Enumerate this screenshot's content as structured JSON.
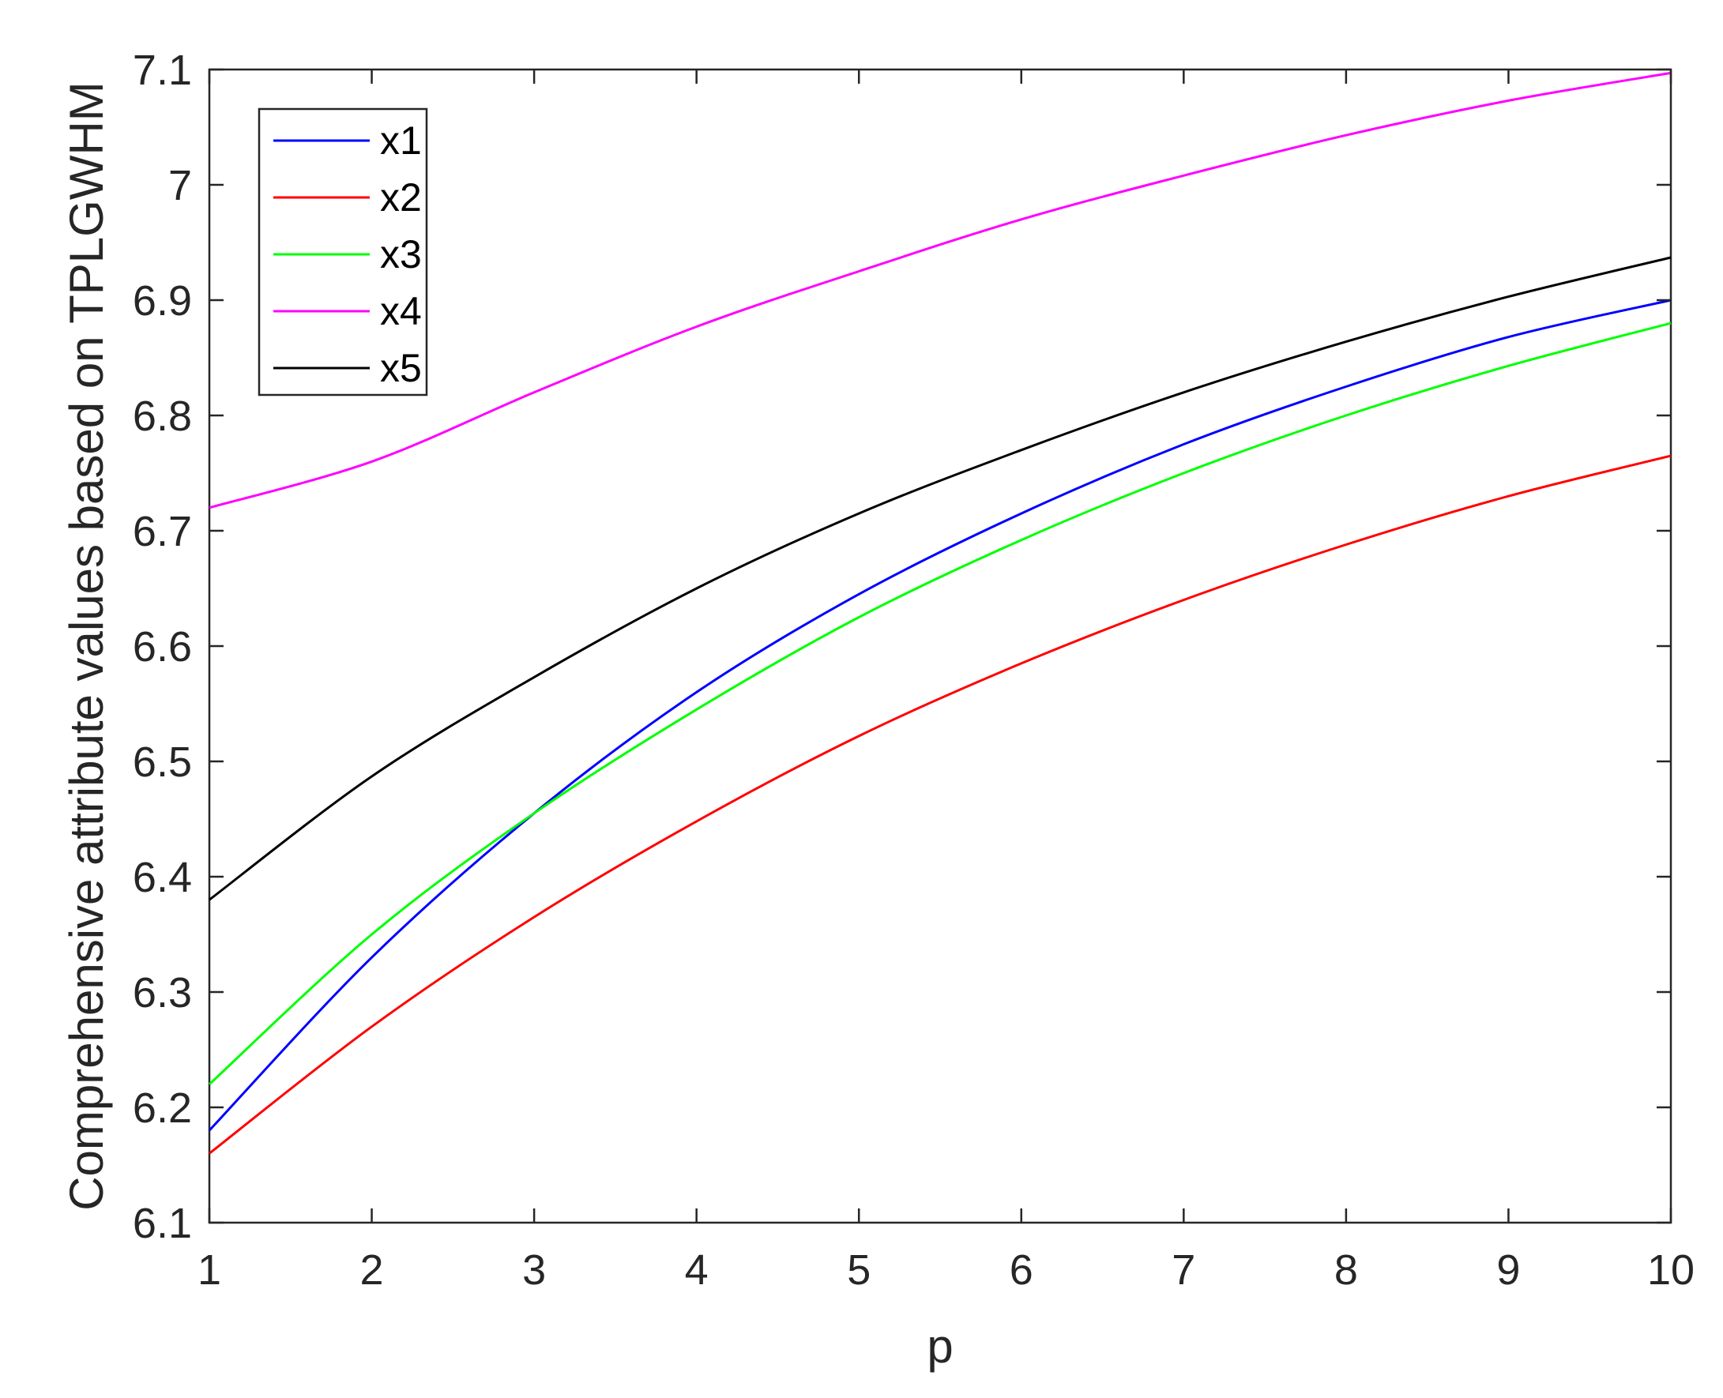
{
  "chart_data": {
    "type": "line",
    "title": "",
    "xlabel": "p",
    "ylabel": "Comprehensive attribute values based on TPLGWHM",
    "xlim": [
      1,
      10
    ],
    "ylim": [
      6.1,
      7.1
    ],
    "x": [
      1,
      2,
      3,
      4,
      5,
      6,
      7,
      8,
      9,
      10
    ],
    "xticks": [
      "1",
      "2",
      "3",
      "4",
      "5",
      "6",
      "7",
      "8",
      "9",
      "10"
    ],
    "yticks": [
      "6.1",
      "6.2",
      "6.3",
      "6.4",
      "6.5",
      "6.6",
      "6.7",
      "6.8",
      "6.9",
      "7",
      "7.1"
    ],
    "grid": false,
    "legend_position": "top-left",
    "series": [
      {
        "name": "x1",
        "color": "#0000ff",
        "values": [
          6.18,
          6.33,
          6.455,
          6.56,
          6.645,
          6.715,
          6.775,
          6.825,
          6.868,
          6.9
        ]
      },
      {
        "name": "x2",
        "color": "#ff0000",
        "values": [
          6.16,
          6.27,
          6.365,
          6.448,
          6.522,
          6.585,
          6.64,
          6.688,
          6.73,
          6.765
        ]
      },
      {
        "name": "x3",
        "color": "#00ff00",
        "values": [
          6.22,
          6.35,
          6.455,
          6.545,
          6.625,
          6.692,
          6.75,
          6.8,
          6.843,
          6.88
        ]
      },
      {
        "name": "x4",
        "color": "#ff00ff",
        "values": [
          6.72,
          6.76,
          6.82,
          6.877,
          6.925,
          6.97,
          7.008,
          7.043,
          7.073,
          7.097
        ]
      },
      {
        "name": "x5",
        "color": "#000000",
        "values": [
          6.38,
          6.487,
          6.573,
          6.65,
          6.715,
          6.77,
          6.82,
          6.864,
          6.903,
          6.937
        ]
      }
    ]
  }
}
